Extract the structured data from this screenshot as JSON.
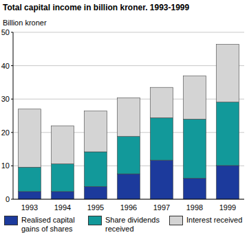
{
  "chart_data": {
    "type": "bar",
    "stacked": true,
    "grid": true,
    "title": "Total capital income in billion kroner. 1993-1999",
    "y_label": "Billion kroner",
    "categories": [
      "1993",
      "1994",
      "1995",
      "1996",
      "1997",
      "1998",
      "1999"
    ],
    "series": [
      {
        "name": "Realised capital gains of shares",
        "color": "#1c3a9c",
        "values": [
          2.3,
          2.3,
          3.8,
          7.6,
          11.7,
          6.3,
          10.1
        ]
      },
      {
        "name": "Share dividends received",
        "color": "#12999a",
        "values": [
          7.3,
          8.3,
          10.4,
          11.2,
          12.7,
          17.7,
          19.0
        ]
      },
      {
        "name": "Interest received",
        "color": "#d4d4d4",
        "values": [
          17.4,
          11.4,
          12.2,
          11.6,
          9.1,
          12.9,
          17.3
        ]
      }
    ],
    "ylim": [
      0,
      50
    ],
    "yticks": [
      0,
      10,
      20,
      30,
      40,
      50
    ]
  }
}
